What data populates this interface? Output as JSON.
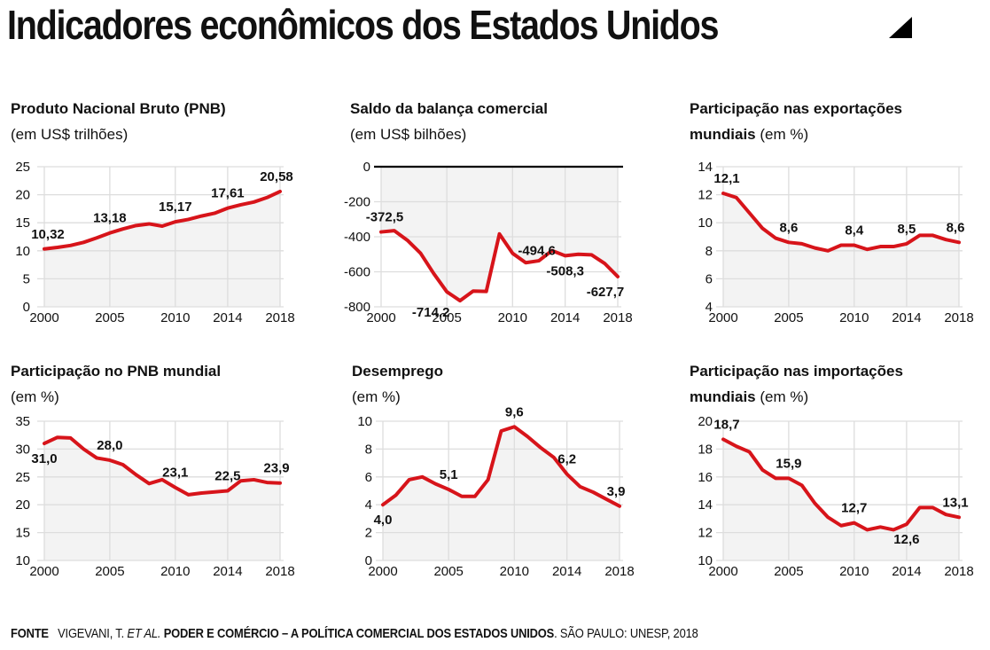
{
  "title": "Indicadores econômicos dos Estados Unidos",
  "footer": {
    "label": "FONTE",
    "author": "VIGEVANI, T.",
    "etal": "ET AL.",
    "work": "PODER E COMÉRCIO – A POLÍTICA COMERCIAL DOS ESTADOS UNIDOS",
    "publisher": ". SÃO PAULO: UNESP, 2018"
  },
  "colors": {
    "line": "#d7141a",
    "fill": "#f3f3f3",
    "grid": "#dddddd",
    "zero": "#000000"
  },
  "chart_data": [
    {
      "type": "area",
      "title": "Produto Nacional Bruto (PNB)",
      "subtitle": "(em US$ trilhões)",
      "x": [
        2000,
        2001,
        2002,
        2003,
        2004,
        2005,
        2006,
        2007,
        2008,
        2009,
        2010,
        2011,
        2012,
        2013,
        2014,
        2015,
        2016,
        2017,
        2018
      ],
      "values": [
        10.32,
        10.6,
        10.95,
        11.5,
        12.3,
        13.18,
        13.9,
        14.5,
        14.8,
        14.4,
        15.17,
        15.6,
        16.2,
        16.7,
        17.61,
        18.2,
        18.7,
        19.5,
        20.58
      ],
      "xticks": [
        "2000",
        "2005",
        "2010",
        "2014",
        "2018"
      ],
      "yticks": [
        0,
        5,
        10,
        15,
        20,
        25
      ],
      "ylim": [
        0,
        25
      ],
      "labels": [
        {
          "i": 0,
          "text": "10,32",
          "pos": "above"
        },
        {
          "i": 5,
          "text": "13,18",
          "pos": "above"
        },
        {
          "i": 10,
          "text": "15,17",
          "pos": "above"
        },
        {
          "i": 14,
          "text": "17,61",
          "pos": "above"
        },
        {
          "i": 18,
          "text": "20,58",
          "pos": "above"
        }
      ]
    },
    {
      "type": "area",
      "title": "Saldo da balança comercial",
      "subtitle": "(em US$ bilhões)",
      "x": [
        2000,
        2001,
        2002,
        2003,
        2004,
        2005,
        2006,
        2007,
        2008,
        2009,
        2010,
        2011,
        2012,
        2013,
        2014,
        2015,
        2016,
        2017,
        2018
      ],
      "values": [
        -372.5,
        -365,
        -420,
        -494,
        -610,
        -714.2,
        -765,
        -710,
        -712,
        -384,
        -494.6,
        -548,
        -537,
        -479,
        -508.3,
        -500,
        -503,
        -552,
        -627.7
      ],
      "xticks": [
        "2000",
        "2005",
        "2010",
        "2014",
        "2018"
      ],
      "yticks": [
        0,
        -200,
        -400,
        -600,
        -800
      ],
      "ylim": [
        -800,
        0
      ],
      "zero_line": true,
      "labels": [
        {
          "i": 0,
          "text": "-372,5",
          "pos": "above"
        },
        {
          "i": 5,
          "text": "-714,2",
          "pos": "below-left"
        },
        {
          "i": 10,
          "text": "-494,6",
          "pos": "right-up"
        },
        {
          "i": 14,
          "text": "-508,3",
          "pos": "below"
        },
        {
          "i": 18,
          "text": "-627,7",
          "pos": "below"
        }
      ]
    },
    {
      "type": "area",
      "title": "Participação nas exportações",
      "subtitle_bold": "mundiais",
      "subtitle": " (em %)",
      "x": [
        2000,
        2001,
        2002,
        2003,
        2004,
        2005,
        2006,
        2007,
        2008,
        2009,
        2010,
        2011,
        2012,
        2013,
        2014,
        2015,
        2016,
        2017,
        2018
      ],
      "values": [
        12.1,
        11.8,
        10.7,
        9.6,
        8.9,
        8.6,
        8.5,
        8.2,
        8.0,
        8.4,
        8.4,
        8.1,
        8.3,
        8.3,
        8.5,
        9.1,
        9.1,
        8.8,
        8.6
      ],
      "xticks": [
        "2000",
        "2005",
        "2010",
        "2014",
        "2018"
      ],
      "yticks": [
        4,
        6,
        8,
        10,
        12,
        14
      ],
      "ylim": [
        4,
        14
      ],
      "labels": [
        {
          "i": 0,
          "text": "12,1",
          "pos": "above"
        },
        {
          "i": 5,
          "text": "8,6",
          "pos": "above"
        },
        {
          "i": 10,
          "text": "8,4",
          "pos": "above"
        },
        {
          "i": 14,
          "text": "8,5",
          "pos": "above"
        },
        {
          "i": 18,
          "text": "8,6",
          "pos": "above"
        }
      ]
    },
    {
      "type": "area",
      "title": "Participação no PNB mundial",
      "subtitle": "(em %)",
      "x": [
        2000,
        2001,
        2002,
        2003,
        2004,
        2005,
        2006,
        2007,
        2008,
        2009,
        2010,
        2011,
        2012,
        2013,
        2014,
        2015,
        2016,
        2017,
        2018
      ],
      "values": [
        31.0,
        32.1,
        32.0,
        30.0,
        28.4,
        28.0,
        27.2,
        25.4,
        23.8,
        24.5,
        23.1,
        21.8,
        22.1,
        22.3,
        22.5,
        24.3,
        24.5,
        24.0,
        23.9
      ],
      "xticks": [
        "2000",
        "2005",
        "2010",
        "2014",
        "2018"
      ],
      "yticks": [
        10,
        15,
        20,
        25,
        30,
        35
      ],
      "ylim": [
        10,
        35
      ],
      "labels": [
        {
          "i": 0,
          "text": "31,0",
          "pos": "below"
        },
        {
          "i": 5,
          "text": "28,0",
          "pos": "above"
        },
        {
          "i": 10,
          "text": "23,1",
          "pos": "above"
        },
        {
          "i": 14,
          "text": "22,5",
          "pos": "above"
        },
        {
          "i": 18,
          "text": "23,9",
          "pos": "above"
        }
      ]
    },
    {
      "type": "area",
      "title": "Desemprego",
      "subtitle": "(em %)",
      "x": [
        2000,
        2001,
        2002,
        2003,
        2004,
        2005,
        2006,
        2007,
        2008,
        2009,
        2010,
        2011,
        2012,
        2013,
        2014,
        2015,
        2016,
        2017,
        2018
      ],
      "values": [
        4.0,
        4.7,
        5.8,
        6.0,
        5.5,
        5.1,
        4.6,
        4.6,
        5.8,
        9.3,
        9.6,
        8.9,
        8.1,
        7.4,
        6.2,
        5.3,
        4.9,
        4.4,
        3.9
      ],
      "xticks": [
        "2000",
        "2005",
        "2010",
        "2014",
        "2018"
      ],
      "yticks": [
        0,
        2,
        4,
        6,
        8,
        10
      ],
      "ylim": [
        0,
        10
      ],
      "labels": [
        {
          "i": 0,
          "text": "4,0",
          "pos": "below"
        },
        {
          "i": 5,
          "text": "5,1",
          "pos": "above"
        },
        {
          "i": 10,
          "text": "9,6",
          "pos": "above"
        },
        {
          "i": 14,
          "text": "6,2",
          "pos": "above"
        },
        {
          "i": 18,
          "text": "3,9",
          "pos": "above"
        }
      ]
    },
    {
      "type": "area",
      "title": "Participação nas importações",
      "subtitle_bold": "mundiais",
      "subtitle": " (em %)",
      "x": [
        2000,
        2001,
        2002,
        2003,
        2004,
        2005,
        2006,
        2007,
        2008,
        2009,
        2010,
        2011,
        2012,
        2013,
        2014,
        2015,
        2016,
        2017,
        2018
      ],
      "values": [
        18.7,
        18.2,
        17.8,
        16.5,
        15.9,
        15.9,
        15.4,
        14.1,
        13.1,
        12.5,
        12.7,
        12.2,
        12.4,
        12.2,
        12.6,
        13.8,
        13.8,
        13.3,
        13.1
      ],
      "xticks": [
        "2000",
        "2005",
        "2010",
        "2014",
        "2018"
      ],
      "yticks": [
        10,
        12,
        14,
        16,
        18,
        20
      ],
      "ylim": [
        10,
        20
      ],
      "labels": [
        {
          "i": 0,
          "text": "18,7",
          "pos": "above"
        },
        {
          "i": 5,
          "text": "15,9",
          "pos": "above"
        },
        {
          "i": 10,
          "text": "12,7",
          "pos": "above"
        },
        {
          "i": 14,
          "text": "12,6",
          "pos": "below"
        },
        {
          "i": 18,
          "text": "13,1",
          "pos": "above"
        }
      ]
    }
  ]
}
